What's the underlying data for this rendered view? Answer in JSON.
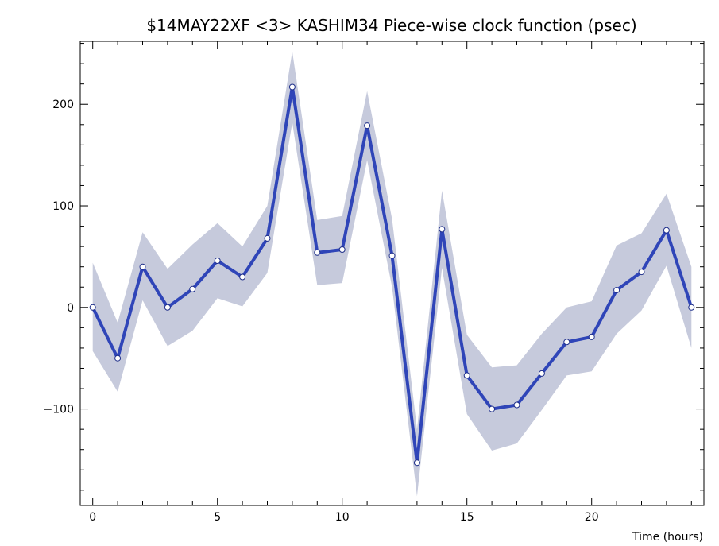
{
  "chart_data": {
    "type": "line",
    "title": "$14MAY22XF <3>   KASHIM34   Piece-wise clock function (psec)",
    "xlabel": "Time (hours)",
    "ylabel": "",
    "xlim": [
      -0.5,
      24.5
    ],
    "ylim": [
      -195,
      262
    ],
    "x_ticks": [
      0,
      5,
      10,
      15,
      20
    ],
    "y_ticks": [
      -100,
      0,
      100,
      200
    ],
    "x_tick_labels": [
      "0",
      "5",
      "10",
      "15",
      "20"
    ],
    "y_tick_labels": [
      "−100",
      "0",
      "100",
      "200"
    ],
    "grid": false,
    "colors": {
      "line": "#2f45b8",
      "band": "#c6cadc",
      "marker_fill": "#ffffff",
      "marker_stroke": "#1f2f8a",
      "axes": "#000000"
    },
    "series": [
      {
        "x": [
          0,
          1,
          2,
          3,
          4,
          5,
          6,
          7,
          8,
          9,
          10,
          11,
          12,
          13,
          14,
          15,
          16,
          17,
          18,
          19,
          20,
          21,
          22,
          23,
          24
        ],
        "values": [
          0,
          -50,
          40,
          0,
          18,
          46,
          30,
          68,
          217,
          54,
          57,
          179,
          51,
          -153,
          77,
          -67,
          -100,
          -96,
          -65,
          -34,
          -29,
          17,
          35,
          76,
          0
        ],
        "upper": [
          44,
          -15,
          74,
          38,
          62,
          83,
          60,
          100,
          252,
          86,
          90,
          213,
          87,
          -120,
          115,
          -27,
          -59,
          -57,
          -26,
          0,
          6,
          61,
          73,
          112,
          40
        ],
        "lower": [
          -43,
          -83,
          7,
          -38,
          -23,
          9,
          1,
          34,
          182,
          22,
          24,
          145,
          20,
          -186,
          39,
          -105,
          -141,
          -134,
          -101,
          -67,
          -63,
          -26,
          -3,
          41,
          -40
        ]
      }
    ]
  }
}
